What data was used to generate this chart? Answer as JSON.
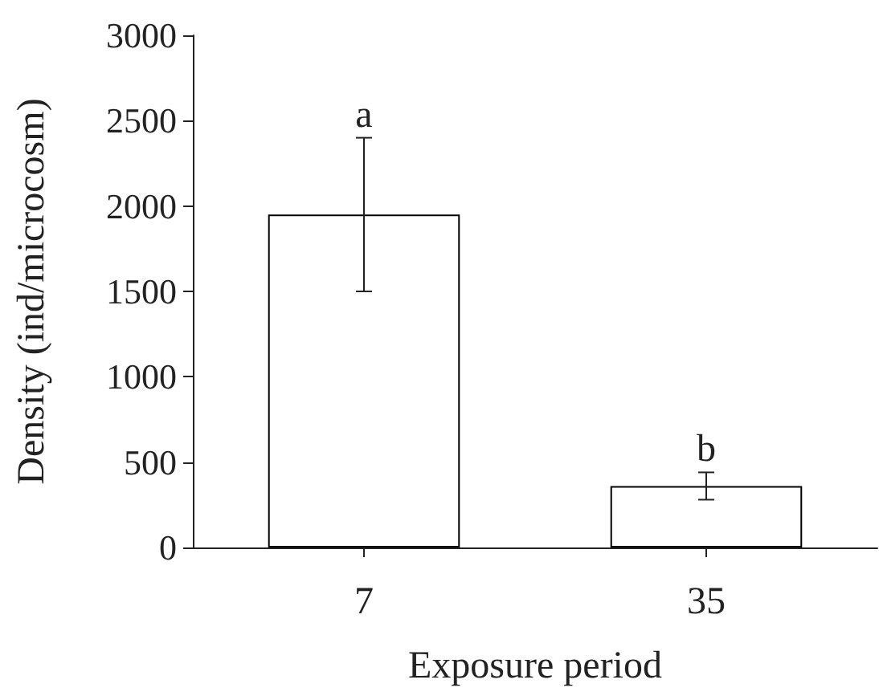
{
  "chart_data": {
    "type": "bar",
    "xlabel": "Exposure period",
    "ylabel": "Density (ind/microcosm)",
    "categories": [
      "7",
      "35"
    ],
    "values": [
      1950,
      360
    ],
    "errors": [
      [
        1500,
        2400
      ],
      [
        280,
        440
      ]
    ],
    "color": "#ffffff",
    "ylim": [
      0,
      3000
    ],
    "yticks": [
      0,
      500,
      1000,
      1500,
      2000,
      2500,
      3000
    ],
    "annotations": [
      {
        "text": "a",
        "x": "7",
        "y": 2400
      },
      {
        "text": "b",
        "x": "35",
        "y": 440
      }
    ],
    "grid": false
  }
}
